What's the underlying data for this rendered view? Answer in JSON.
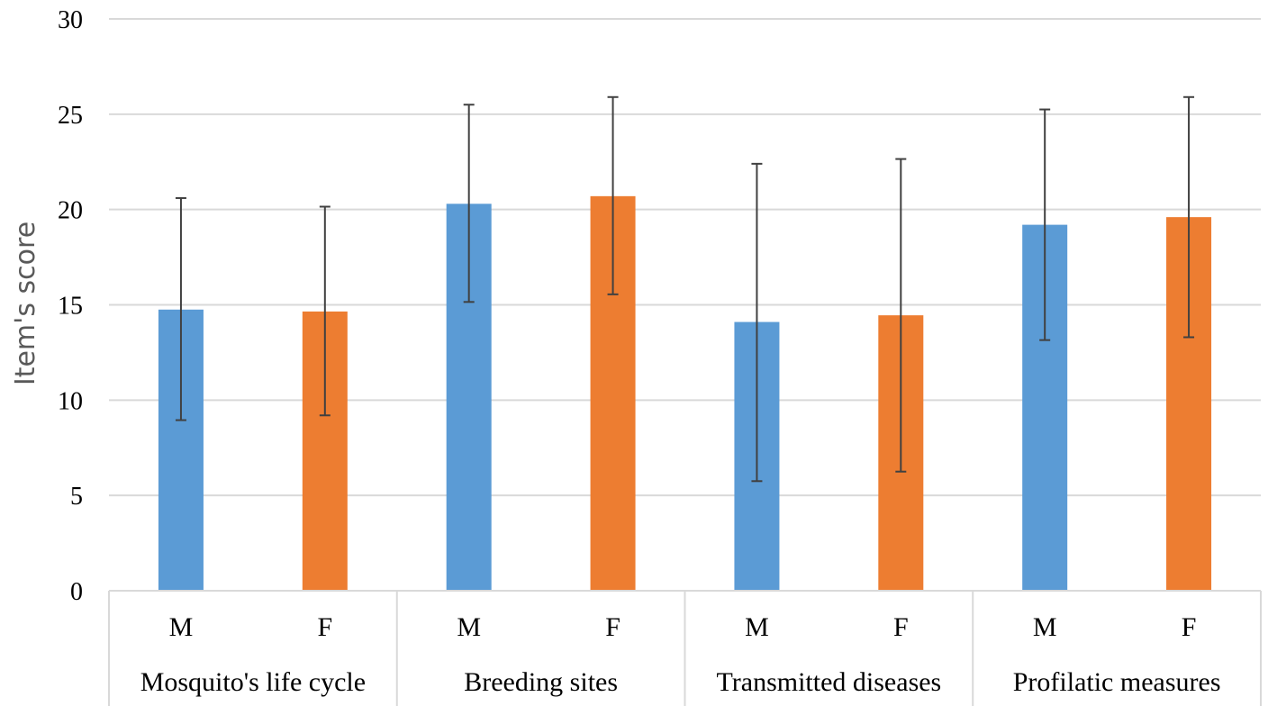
{
  "chart_data": {
    "type": "bar",
    "title": "",
    "xlabel": "",
    "ylabel": "Item's score",
    "ylim": [
      0,
      30
    ],
    "yticks": [
      0,
      5,
      10,
      15,
      20,
      25,
      30
    ],
    "grid": true,
    "groups": [
      "Mosquito's life cycle",
      "Breeding sites",
      "Transmitted diseases",
      "Profilatic measures"
    ],
    "subcategories": [
      "M",
      "F"
    ],
    "bars": [
      {
        "group": "Mosquito's life cycle",
        "sub": "M",
        "value": 14.75,
        "err_low": 8.95,
        "err_high": 20.6
      },
      {
        "group": "Mosquito's life cycle",
        "sub": "F",
        "value": 14.65,
        "err_low": 9.2,
        "err_high": 20.15
      },
      {
        "group": "Breeding sites",
        "sub": "M",
        "value": 20.3,
        "err_low": 15.15,
        "err_high": 25.5
      },
      {
        "group": "Breeding sites",
        "sub": "F",
        "value": 20.7,
        "err_low": 15.55,
        "err_high": 25.9
      },
      {
        "group": "Transmitted diseases",
        "sub": "M",
        "value": 14.1,
        "err_low": 5.75,
        "err_high": 22.4
      },
      {
        "group": "Transmitted diseases",
        "sub": "F",
        "value": 14.45,
        "err_low": 6.25,
        "err_high": 22.65
      },
      {
        "group": "Profilatic measures",
        "sub": "M",
        "value": 19.2,
        "err_low": 13.15,
        "err_high": 25.25
      },
      {
        "group": "Profilatic measures",
        "sub": "F",
        "value": 19.6,
        "err_low": 13.3,
        "err_high": 25.9
      }
    ],
    "colors": {
      "M": "#5B9BD5",
      "F": "#ED7D31"
    },
    "gridline_color": "#D9D9D9",
    "errorbar_color": "#404040"
  }
}
